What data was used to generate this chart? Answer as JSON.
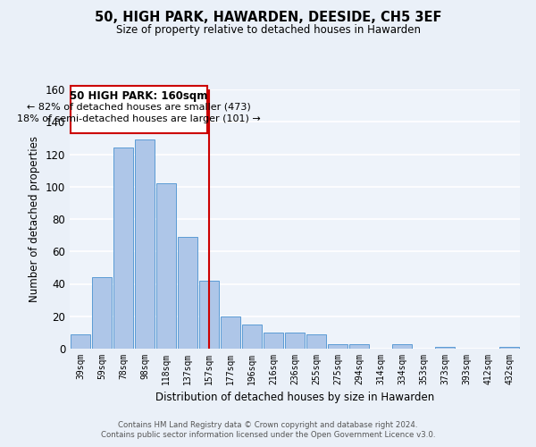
{
  "title": "50, HIGH PARK, HAWARDEN, DEESIDE, CH5 3EF",
  "subtitle": "Size of property relative to detached houses in Hawarden",
  "xlabel": "Distribution of detached houses by size in Hawarden",
  "ylabel": "Number of detached properties",
  "bar_labels": [
    "39sqm",
    "59sqm",
    "78sqm",
    "98sqm",
    "118sqm",
    "137sqm",
    "157sqm",
    "177sqm",
    "196sqm",
    "216sqm",
    "236sqm",
    "255sqm",
    "275sqm",
    "294sqm",
    "314sqm",
    "334sqm",
    "353sqm",
    "373sqm",
    "393sqm",
    "412sqm",
    "432sqm"
  ],
  "bar_heights": [
    9,
    44,
    124,
    129,
    102,
    69,
    42,
    20,
    15,
    10,
    10,
    9,
    3,
    3,
    0,
    3,
    0,
    1,
    0,
    0,
    1
  ],
  "bar_color": "#aec6e8",
  "bar_edge_color": "#5b9bd5",
  "ylim": [
    0,
    160
  ],
  "yticks": [
    0,
    20,
    40,
    60,
    80,
    100,
    120,
    140,
    160
  ],
  "vline_x_index": 6,
  "vline_color": "#cc0000",
  "annotation_title": "50 HIGH PARK: 160sqm",
  "annotation_line1": "← 82% of detached houses are smaller (473)",
  "annotation_line2": "18% of semi-detached houses are larger (101) →",
  "footer1": "Contains HM Land Registry data © Crown copyright and database right 2024.",
  "footer2": "Contains public sector information licensed under the Open Government Licence v3.0.",
  "bg_color": "#eaf0f8",
  "plot_bg_color": "#eef3fa",
  "grid_color": "#ffffff",
  "annotation_box_color": "#ffffff",
  "annotation_border_color": "#cc0000"
}
